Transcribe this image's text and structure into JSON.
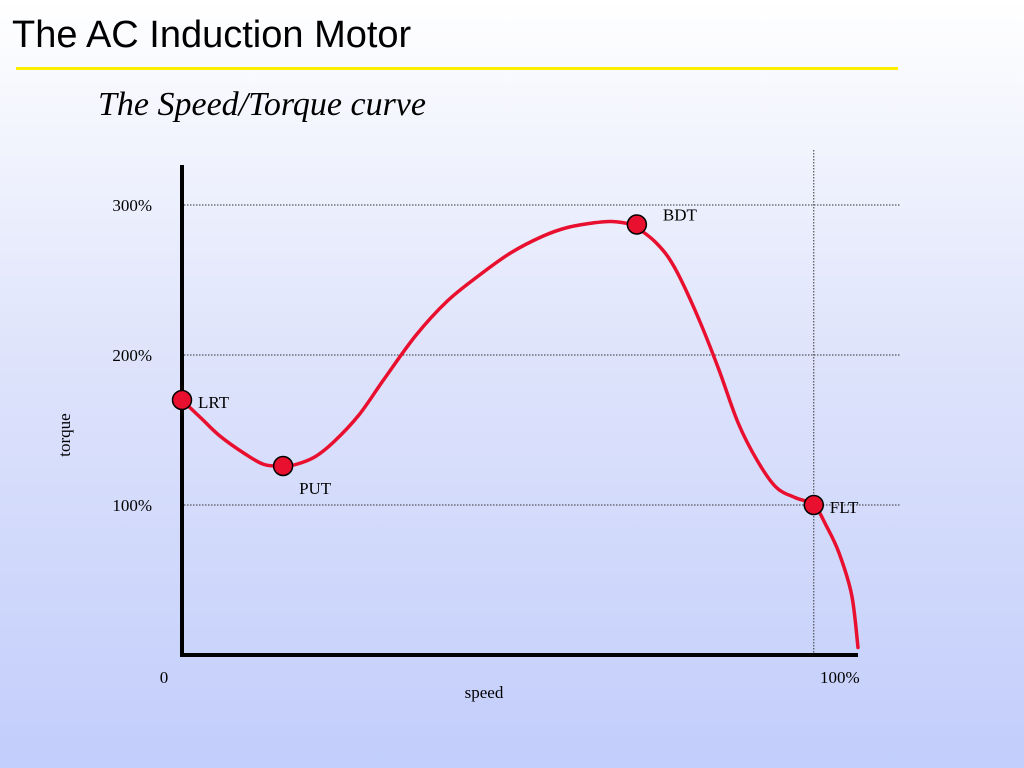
{
  "slide": {
    "title": "The AC Induction Motor",
    "subtitle": "The Speed/Torque curve",
    "rule_color": "#ffee00"
  },
  "chart_data": {
    "type": "line",
    "xlabel": "speed",
    "ylabel": "torque",
    "x_ticks": [
      {
        "value": 0,
        "label": "0"
      },
      {
        "value": 100,
        "label": "100%"
      }
    ],
    "y_ticks": [
      {
        "value": 100,
        "label": "100%"
      },
      {
        "value": 200,
        "label": "200%"
      },
      {
        "value": 300,
        "label": "300%"
      }
    ],
    "xlim": [
      0,
      107
    ],
    "ylim": [
      0,
      340
    ],
    "grid": {
      "horizontal": true,
      "vertical_at_x": 100,
      "style": "dotted"
    },
    "series": [
      {
        "color": "#e8102e",
        "x": [
          0,
          3,
          6,
          10,
          13,
          16,
          18,
          21,
          24,
          28,
          32,
          37,
          42,
          47,
          52,
          57,
          61,
          65,
          68,
          71,
          73,
          75,
          77,
          79,
          82,
          85,
          88,
          91,
          94,
          97,
          100,
          102,
          104,
          106,
          107
        ],
        "y": [
          170,
          158,
          146,
          134,
          127,
          126,
          127,
          132,
          142,
          160,
          184,
          213,
          236,
          253,
          268,
          279,
          285,
          288,
          289,
          287,
          282,
          275,
          265,
          250,
          222,
          190,
          155,
          130,
          112,
          105,
          100,
          86,
          68,
          40,
          5
        ]
      }
    ],
    "points": [
      {
        "label": "LRT",
        "x": 0,
        "y": 170
      },
      {
        "label": "PUT",
        "x": 16,
        "y": 126
      },
      {
        "label": "BDT",
        "x": 72,
        "y": 287
      },
      {
        "label": "FLT",
        "x": 100,
        "y": 100
      }
    ]
  }
}
